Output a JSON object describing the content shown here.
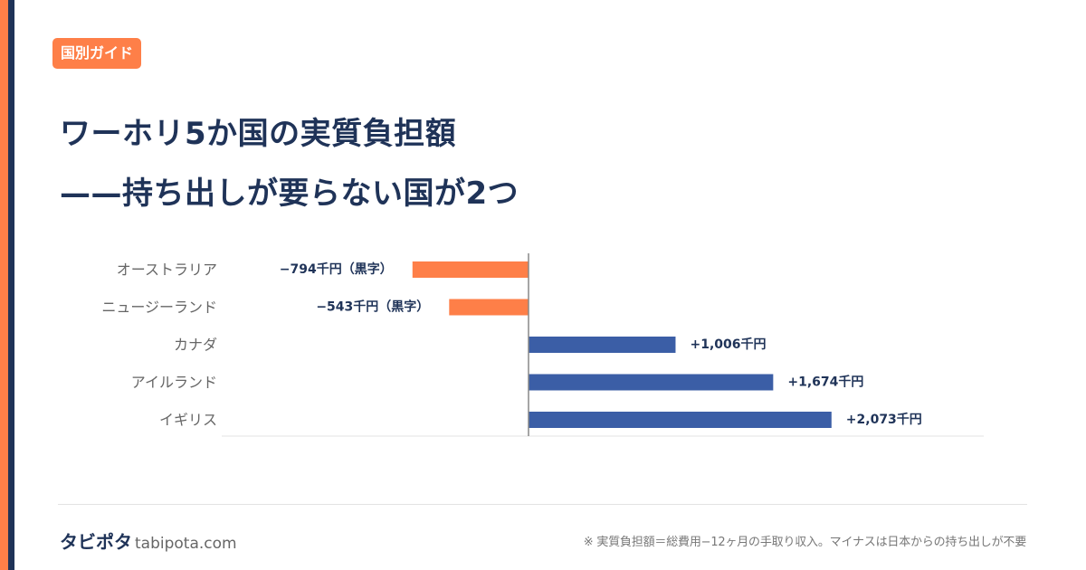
{
  "badge": "国別ガイド",
  "title": {
    "line1": "ワーホリ5か国の実質負担額",
    "line2": "——持ち出しが要らない国が2つ"
  },
  "colors": {
    "negative": "#fe7f48",
    "positive": "#3b5ea6",
    "navy": "#1f3358"
  },
  "chart_data": {
    "type": "bar",
    "orientation": "horizontal",
    "categories": [
      "オーストラリア",
      "ニュージーランド",
      "カナダ",
      "アイルランド",
      "イギリス"
    ],
    "values": [
      -794,
      -543,
      1006,
      1674,
      2073
    ],
    "value_labels": [
      "−794千円（黒字）",
      "−543千円（黒字）",
      "+1,006千円",
      "+1,674千円",
      "+2,073千円"
    ],
    "xlim": [
      -1000,
      2100
    ],
    "grid": false,
    "legend": "none"
  },
  "footer": {
    "brand_name": "タビポタ",
    "brand_domain": "tabipota.com",
    "note": "※ 実質負担額＝総費用−12ヶ月の手取り収入。マイナスは日本からの持ち出しが不要"
  }
}
